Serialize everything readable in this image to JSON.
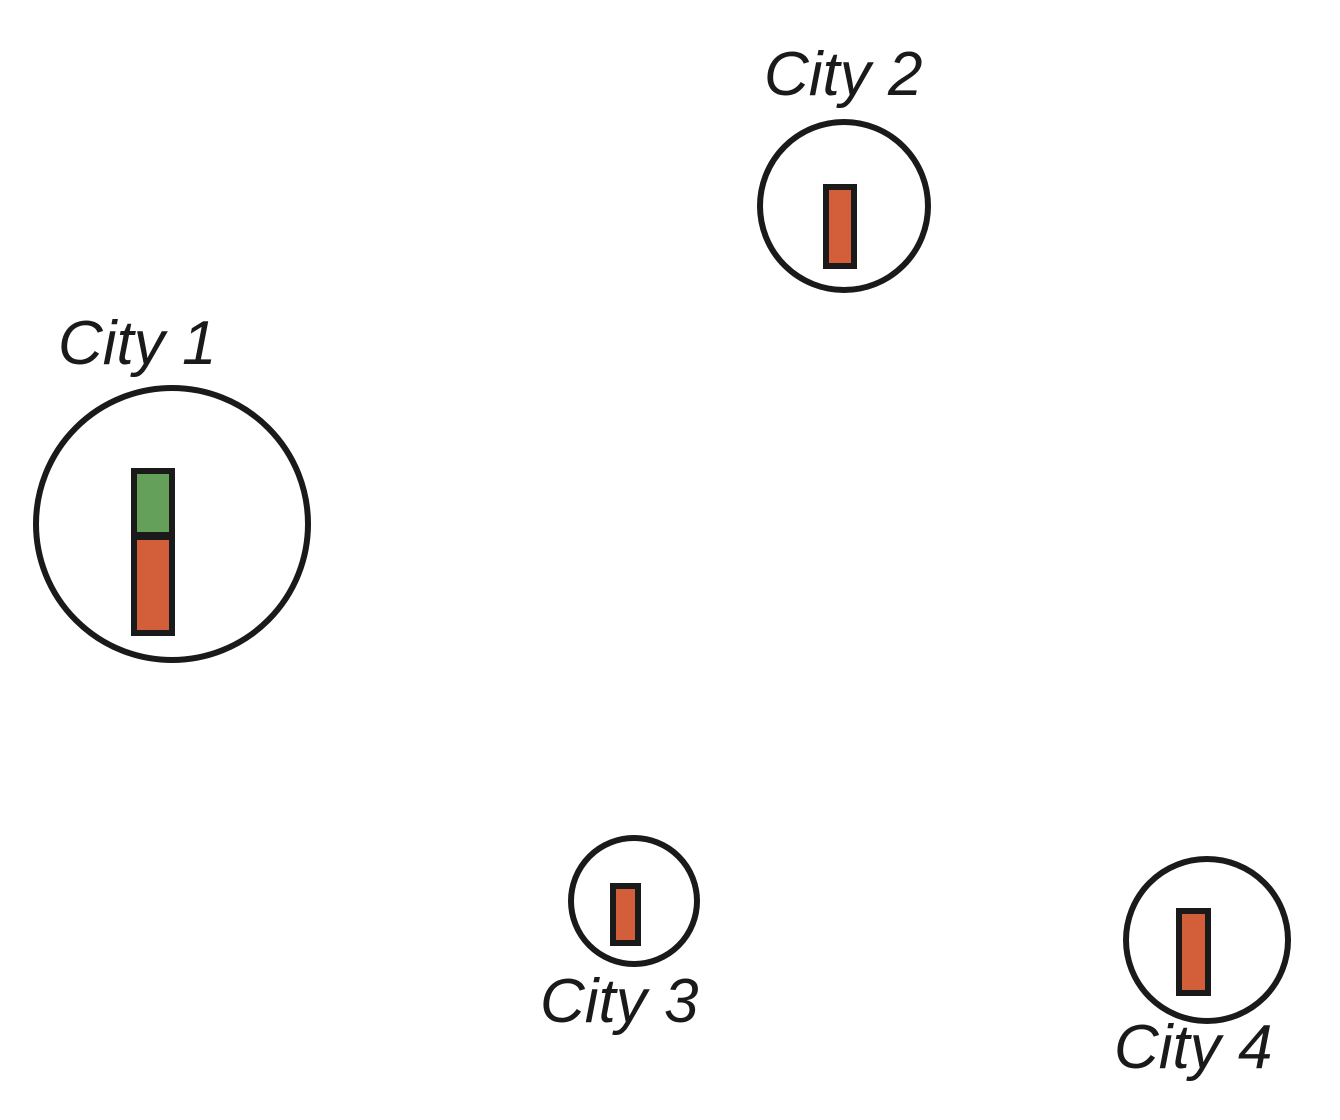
{
  "colors": {
    "outline": "#1a1a1a",
    "red_bar": "#d35f3a",
    "green_bar": "#65a05b"
  },
  "cities": [
    {
      "label": "City 1",
      "red_value": 3,
      "green_value": 2
    },
    {
      "label": "City 2",
      "red_value": 2.5,
      "green_value": 0
    },
    {
      "label": "City 3",
      "red_value": 1.8,
      "green_value": 0
    },
    {
      "label": "City 4",
      "red_value": 2.7,
      "green_value": 0
    }
  ]
}
